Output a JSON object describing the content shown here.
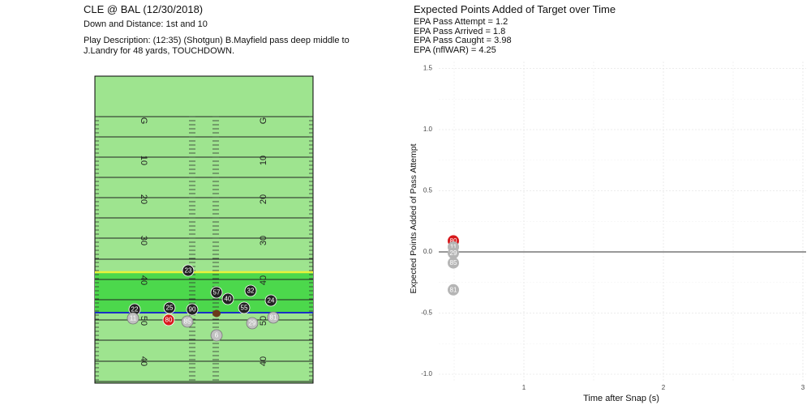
{
  "left_panel": {
    "title": "CLE @ BAL (12/30/2018)",
    "down_distance": "Down and Distance: 1st and 10",
    "play_description": "Play Description: (12:35) (Shotgun) B.Mayfield pass deep middle to J.Landry for 48 yards, TOUCHDOWN."
  },
  "right_panel": {
    "title": "Expected Points Added of Target over Time",
    "epa_lines": [
      "EPA Pass Attempt = 1.2",
      "EPA Pass Arrived = 1.8",
      "EPA Pass Caught = 3.98",
      "EPA (nflWAR) = 4.25"
    ]
  },
  "field": {
    "yard_labels": [
      "G",
      "10",
      "20",
      "30",
      "40",
      "50",
      "40"
    ],
    "colors": {
      "field": "#9ee48f",
      "highlight": "#4cd84c",
      "first_down_line": "#e8f23a",
      "scrimmage_line": "#1a2fc4",
      "defense": "#222222",
      "offense": "#c0c0c0",
      "target": "#d7191c",
      "ball": "#6b3a1a"
    },
    "players": [
      {
        "num": "23",
        "team": "defense"
      },
      {
        "num": "57",
        "team": "defense"
      },
      {
        "num": "32",
        "team": "defense"
      },
      {
        "num": "40",
        "team": "defense"
      },
      {
        "num": "24",
        "team": "defense"
      },
      {
        "num": "55",
        "team": "defense"
      },
      {
        "num": "25",
        "team": "defense"
      },
      {
        "num": "90",
        "team": "defense"
      },
      {
        "num": "22",
        "team": "defense"
      },
      {
        "num": "11",
        "team": "offense"
      },
      {
        "num": "80",
        "team": "target"
      },
      {
        "num": "85",
        "team": "offense"
      },
      {
        "num": "6",
        "team": "offense"
      },
      {
        "num": "29",
        "team": "offense"
      },
      {
        "num": "81",
        "team": "offense"
      }
    ]
  },
  "chart_data": {
    "type": "scatter",
    "title": "Expected Points Added of Target over Time",
    "xlabel": "Time after Snap (s)",
    "ylabel": "Expected Points Added of Pass Attempt",
    "xlim": [
      0.3,
      3.0
    ],
    "ylim": [
      -1.0,
      1.5
    ],
    "xticks": [
      1,
      2,
      3
    ],
    "yticks": [
      -1.0,
      -0.5,
      0.0,
      0.5,
      1.0,
      1.5
    ],
    "xtick_labels": [
      "1",
      "2",
      "3"
    ],
    "ytick_labels": [
      "-1.0",
      "-0.5",
      "0.0",
      "0.5",
      "1.0",
      "1.5"
    ],
    "grid": true,
    "hline": 0,
    "points": [
      {
        "label": "80",
        "x": 0.5,
        "y": 0.09,
        "color": "#d7191c"
      },
      {
        "label": "11",
        "x": 0.5,
        "y": 0.04,
        "color": "#b5b5b5"
      },
      {
        "label": "29",
        "x": 0.5,
        "y": -0.01,
        "color": "#b5b5b5"
      },
      {
        "label": "85",
        "x": 0.5,
        "y": -0.09,
        "color": "#b5b5b5"
      },
      {
        "label": "81",
        "x": 0.5,
        "y": -0.31,
        "color": "#b5b5b5"
      }
    ]
  }
}
